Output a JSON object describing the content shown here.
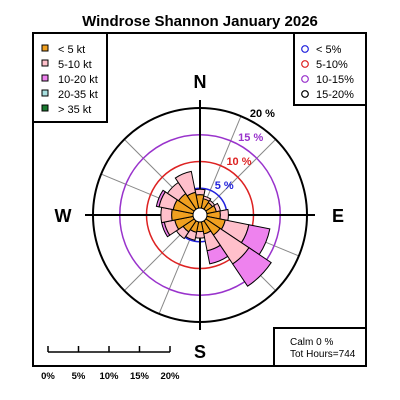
{
  "chart_data": {
    "type": "windrose",
    "title": "Windrose  Shannon January 2026",
    "cardinals": {
      "north": "N",
      "east": "E",
      "south": "S",
      "west": "W"
    },
    "rings": [
      {
        "value": 5,
        "label": "5 %",
        "color": "#2222dd"
      },
      {
        "value": 10,
        "label": "10 %",
        "color": "#dd2222"
      },
      {
        "value": 15,
        "label": "15 %",
        "color": "#9933cc"
      },
      {
        "value": 20,
        "label": "20 %",
        "color": "#000000"
      }
    ],
    "max_percent": 20,
    "speed_classes": [
      {
        "label": "< 5  kt",
        "color": "#f0a020"
      },
      {
        "label": "5-10 kt",
        "color": "#ffc0cb"
      },
      {
        "label": "10-20 kt",
        "color": "#ee82ee"
      },
      {
        "label": "20-35 kt",
        "color": "#a8e0e0"
      },
      {
        "label": "> 35 kt",
        "color": "#1a7a30"
      }
    ],
    "direction_legend": [
      {
        "label": "< 5%",
        "color": "#2222dd"
      },
      {
        "label": "5-10%",
        "color": "#dd2222"
      },
      {
        "label": "10-15%",
        "color": "#9933cc"
      },
      {
        "label": "15-20%",
        "color": "#000000"
      }
    ],
    "directions": [
      "N",
      "NNE",
      "NE",
      "ENE",
      "E",
      "ESE",
      "SE",
      "SSE",
      "S",
      "SSW",
      "SW",
      "WSW",
      "W",
      "WNW",
      "NW",
      "NNW"
    ],
    "sector_series": [
      {
        "name": "< 5  kt",
        "values": [
          2.5,
          1.8,
          1.5,
          1.8,
          2.5,
          3.5,
          3.2,
          2.3,
          1.8,
          2.0,
          2.5,
          3.5,
          4.0,
          3.8,
          3.5,
          3.0
        ]
      },
      {
        "name": "5-10 kt",
        "values": [
          1.0,
          0.5,
          0.5,
          0.8,
          1.5,
          4.5,
          6.5,
          3.2,
          1.2,
          1.5,
          1.5,
          2.0,
          2.0,
          2.7,
          2.5,
          4.0
        ]
      },
      {
        "name": "10-20 kt",
        "values": [
          0.0,
          0.0,
          0.0,
          0.0,
          0.0,
          4.0,
          5.0,
          2.5,
          0.0,
          0.0,
          0.0,
          0.5,
          0.0,
          0.5,
          0.0,
          0.0
        ]
      },
      {
        "name": "20-35 kt",
        "values": [
          0,
          0,
          0,
          0,
          0,
          0,
          0,
          0,
          0,
          0,
          0,
          0,
          0,
          0,
          0,
          0
        ]
      },
      {
        "name": "> 35 kt",
        "values": [
          0,
          0,
          0,
          0,
          0,
          0,
          0,
          0,
          0,
          0,
          0,
          0,
          0,
          0,
          0,
          0
        ]
      }
    ],
    "scale_bar": {
      "ticks": [
        "0%",
        "5%",
        "10%",
        "15%",
        "20%"
      ]
    },
    "calm": "Calm 0 %",
    "total_hours": "Tot Hours=744"
  }
}
